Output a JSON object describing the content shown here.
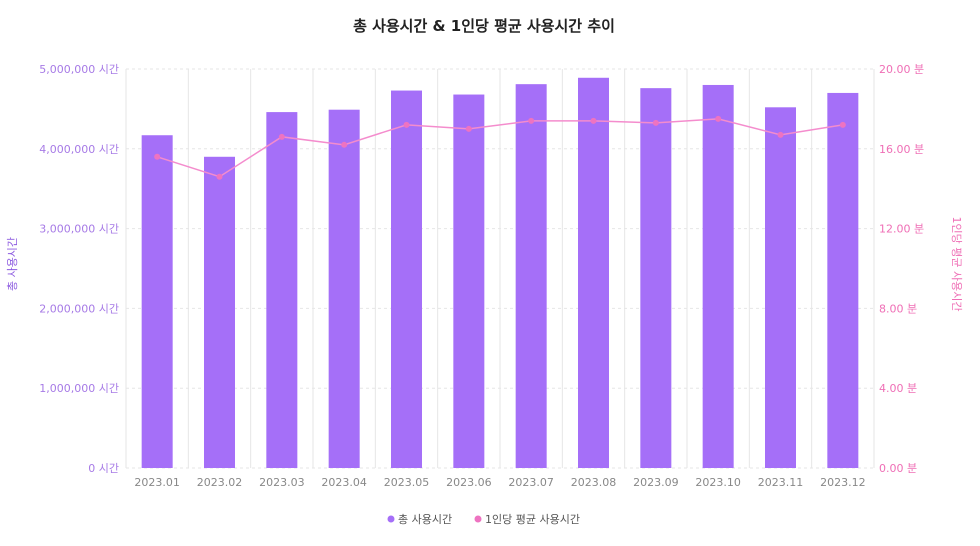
{
  "colors": {
    "bar": "#a56ff8",
    "line": "#f48ccd",
    "point": "#ee73c1",
    "grid": "#e6e6e6",
    "left_axis_text": "#a77be6",
    "right_axis_text": "#ef6fb6"
  },
  "chart_data": {
    "type": "bar",
    "title": "총 사용시간 & 1인당 평균 사용시간 추이",
    "categories": [
      "2023.01",
      "2023.02",
      "2023.03",
      "2023.04",
      "2023.05",
      "2023.06",
      "2023.07",
      "2023.08",
      "2023.09",
      "2023.10",
      "2023.11",
      "2023.12"
    ],
    "series": [
      {
        "name": "총 사용시간",
        "type": "bar",
        "axis": "left",
        "values": [
          4170000,
          3900000,
          4460000,
          4490000,
          4730000,
          4680000,
          4810000,
          4890000,
          4760000,
          4800000,
          4520000,
          4700000
        ]
      },
      {
        "name": "1인당 평균 사용시간",
        "type": "line",
        "axis": "right",
        "values": [
          15.6,
          14.6,
          16.6,
          16.2,
          17.2,
          17.0,
          17.4,
          17.4,
          17.3,
          17.5,
          16.7,
          17.2
        ]
      }
    ],
    "ylabel": "총 사용시간",
    "y2label": "1인당 평균 사용시간",
    "ylim": [
      0,
      5000000
    ],
    "y2lim": [
      0,
      20
    ],
    "y_ticks": [
      "0 시간",
      "1,000,000 시간",
      "2,000,000 시간",
      "3,000,000 시간",
      "4,000,000 시간",
      "5,000,000 시간"
    ],
    "y2_ticks": [
      "0.00 분",
      "4.00 분",
      "8.00 분",
      "12.00 분",
      "16.00 분",
      "20.00 분"
    ],
    "grid": true,
    "legend_position": "bottom"
  }
}
